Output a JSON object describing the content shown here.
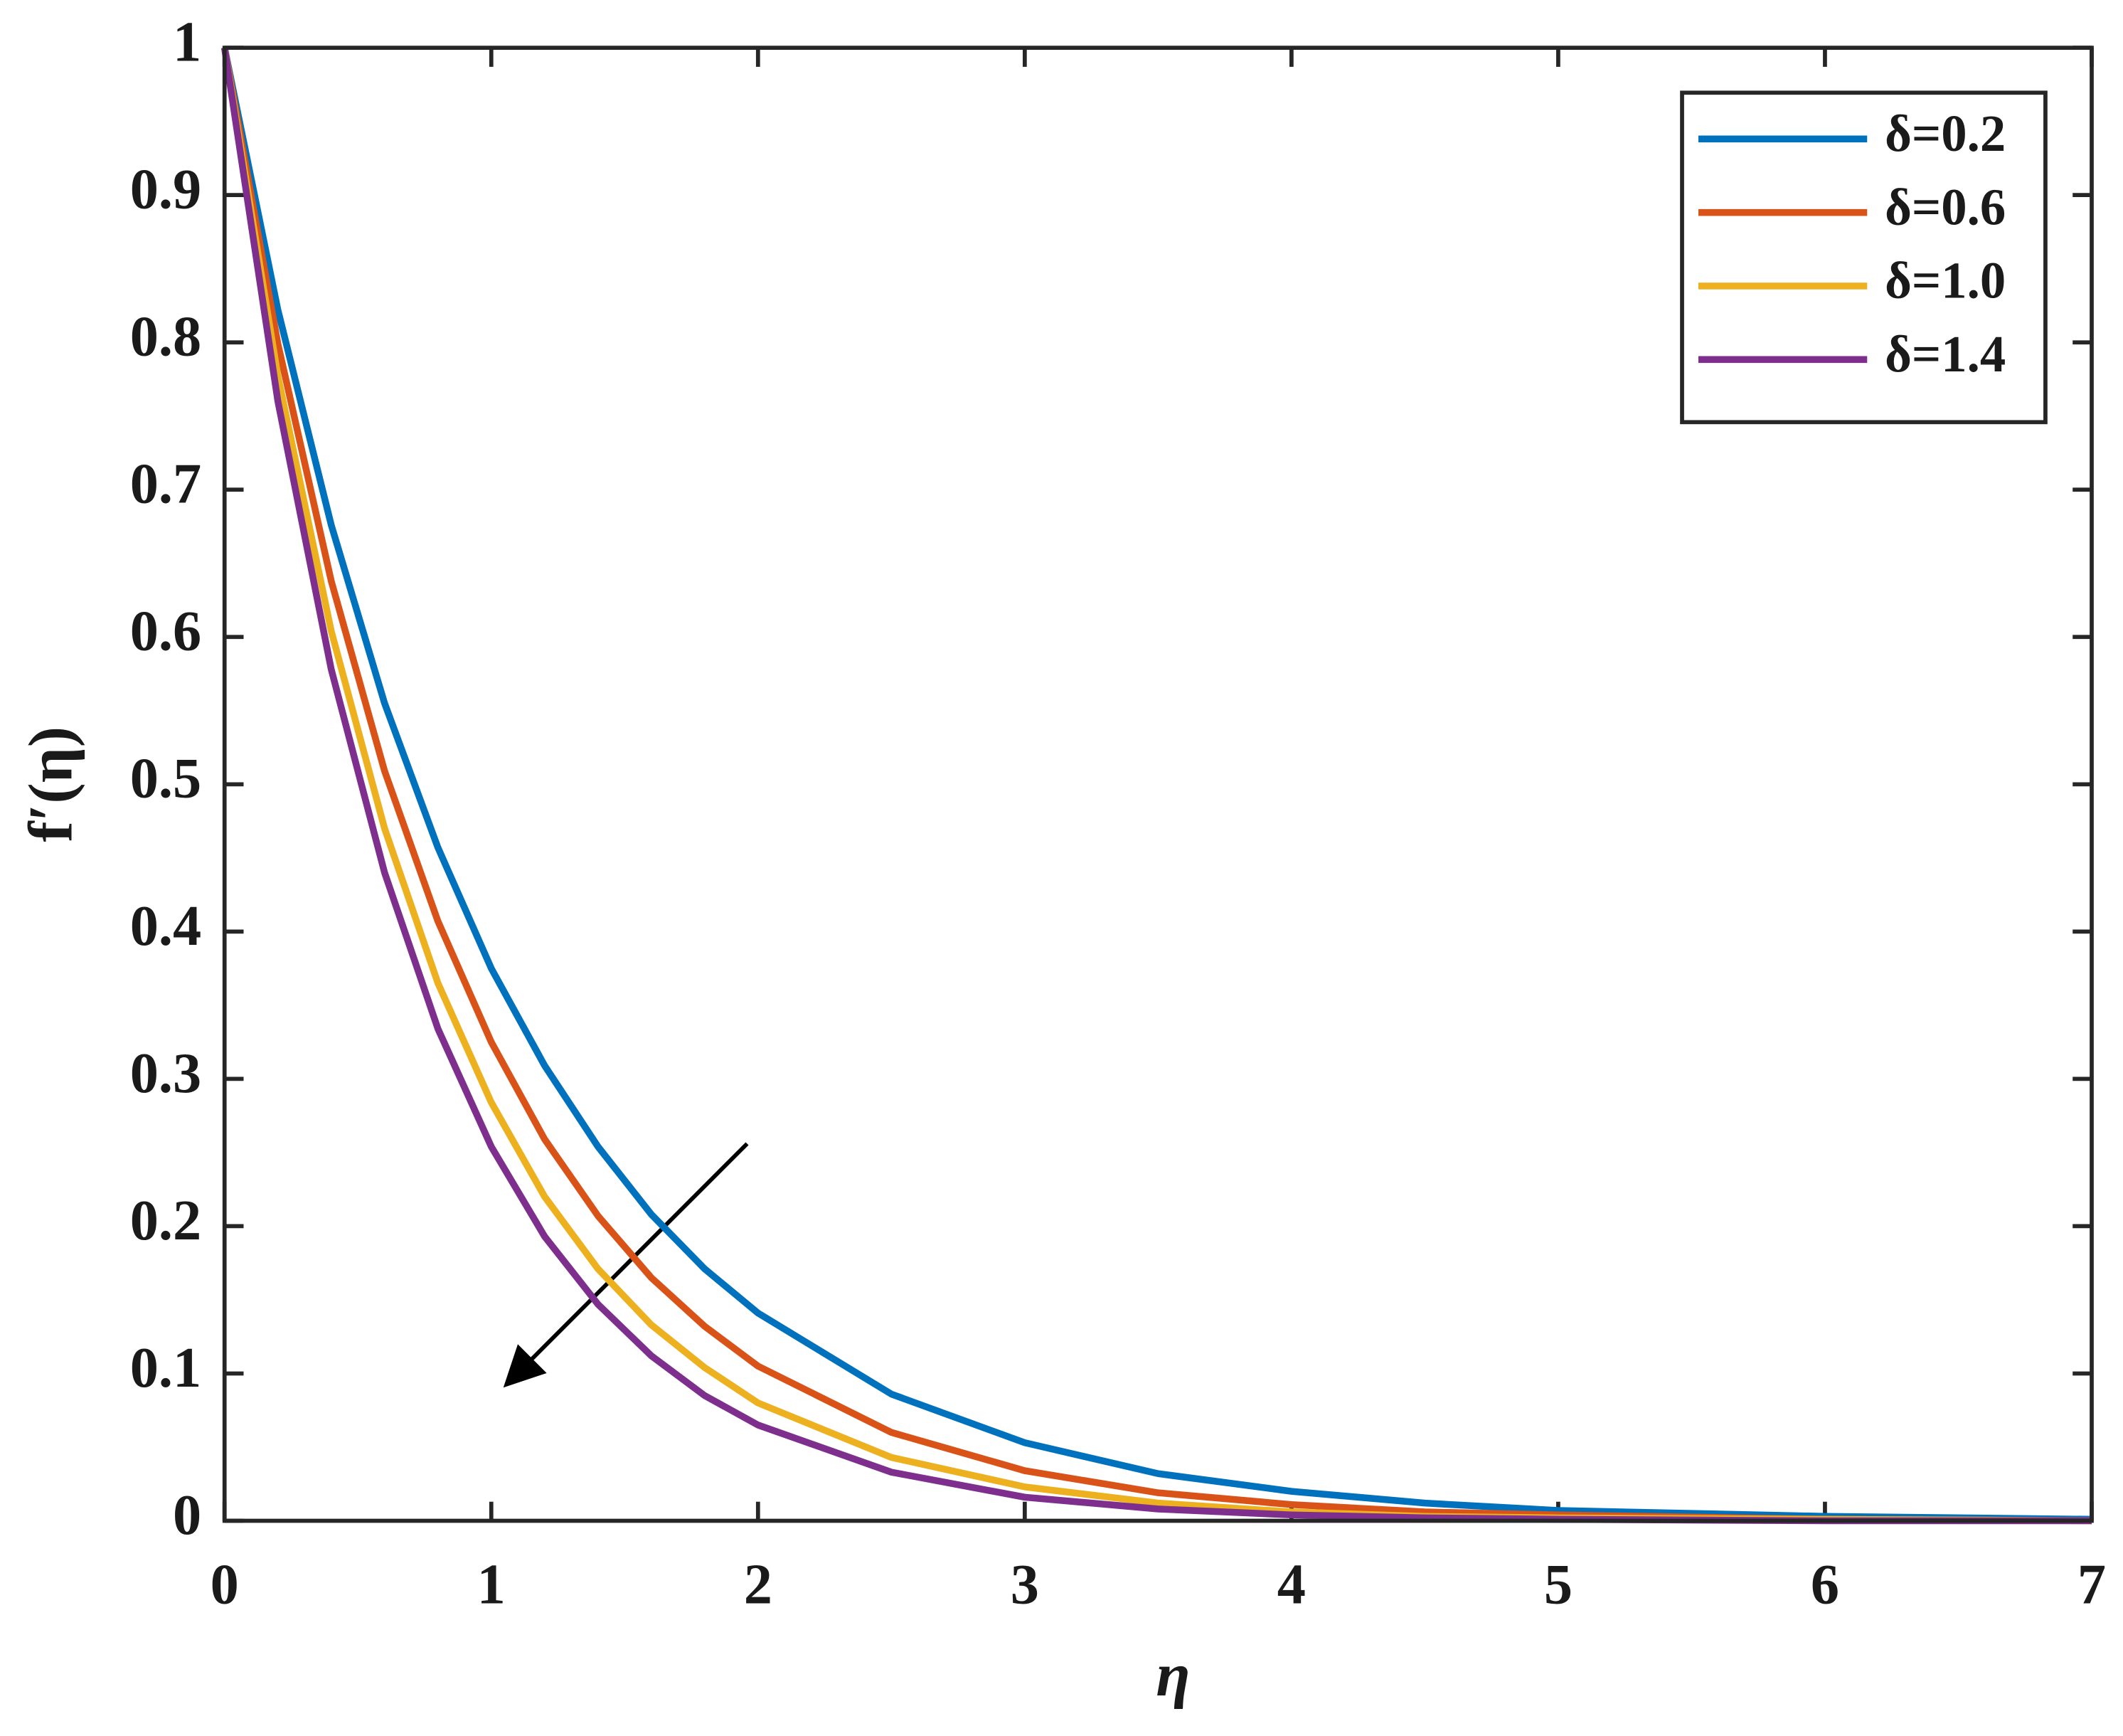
{
  "chart_data": {
    "type": "line",
    "xlabel": "η",
    "ylabel": "f′(η)",
    "x": [
      0,
      0.2,
      0.4,
      0.6,
      0.8,
      1.0,
      1.2,
      1.4,
      1.6,
      1.8,
      2.0,
      2.5,
      3,
      3.5,
      4,
      4.5,
      5,
      6,
      7
    ],
    "series": [
      {
        "name": "δ=0.2",
        "color": "#0072bd",
        "values": [
          1,
          0.822,
          0.676,
          0.555,
          0.457,
          0.375,
          0.309,
          0.254,
          0.208,
          0.171,
          0.141,
          0.086,
          0.053,
          0.032,
          0.02,
          0.012,
          0.007,
          0.003,
          0.001
        ]
      },
      {
        "name": "δ=0.6",
        "color": "#d95319",
        "values": [
          1,
          0.799,
          0.638,
          0.509,
          0.407,
          0.325,
          0.259,
          0.207,
          0.165,
          0.132,
          0.105,
          0.06,
          0.034,
          0.019,
          0.011,
          0.006,
          0.004,
          0.001,
          0
        ]
      },
      {
        "name": "δ=1.0",
        "color": "#edb120",
        "values": [
          1,
          0.777,
          0.604,
          0.47,
          0.365,
          0.284,
          0.22,
          0.171,
          0.133,
          0.104,
          0.08,
          0.043,
          0.023,
          0.012,
          0.006,
          0.003,
          0.002,
          0.001,
          0
        ]
      },
      {
        "name": "δ=1.4",
        "color": "#7e2f8e",
        "values": [
          1,
          0.76,
          0.578,
          0.44,
          0.334,
          0.254,
          0.193,
          0.147,
          0.112,
          0.085,
          0.065,
          0.033,
          0.016,
          0.008,
          0.004,
          0.002,
          0.001,
          0,
          0
        ]
      }
    ],
    "xlim": [
      0,
      7
    ],
    "xticks": [
      0,
      1,
      2,
      3,
      4,
      5,
      6,
      7
    ],
    "ylim": [
      0,
      1
    ],
    "yticks": [
      0,
      0.1,
      0.2,
      0.3,
      0.4,
      0.5,
      0.6,
      0.7,
      0.8,
      0.9,
      1
    ],
    "legend": "upper-right"
  }
}
